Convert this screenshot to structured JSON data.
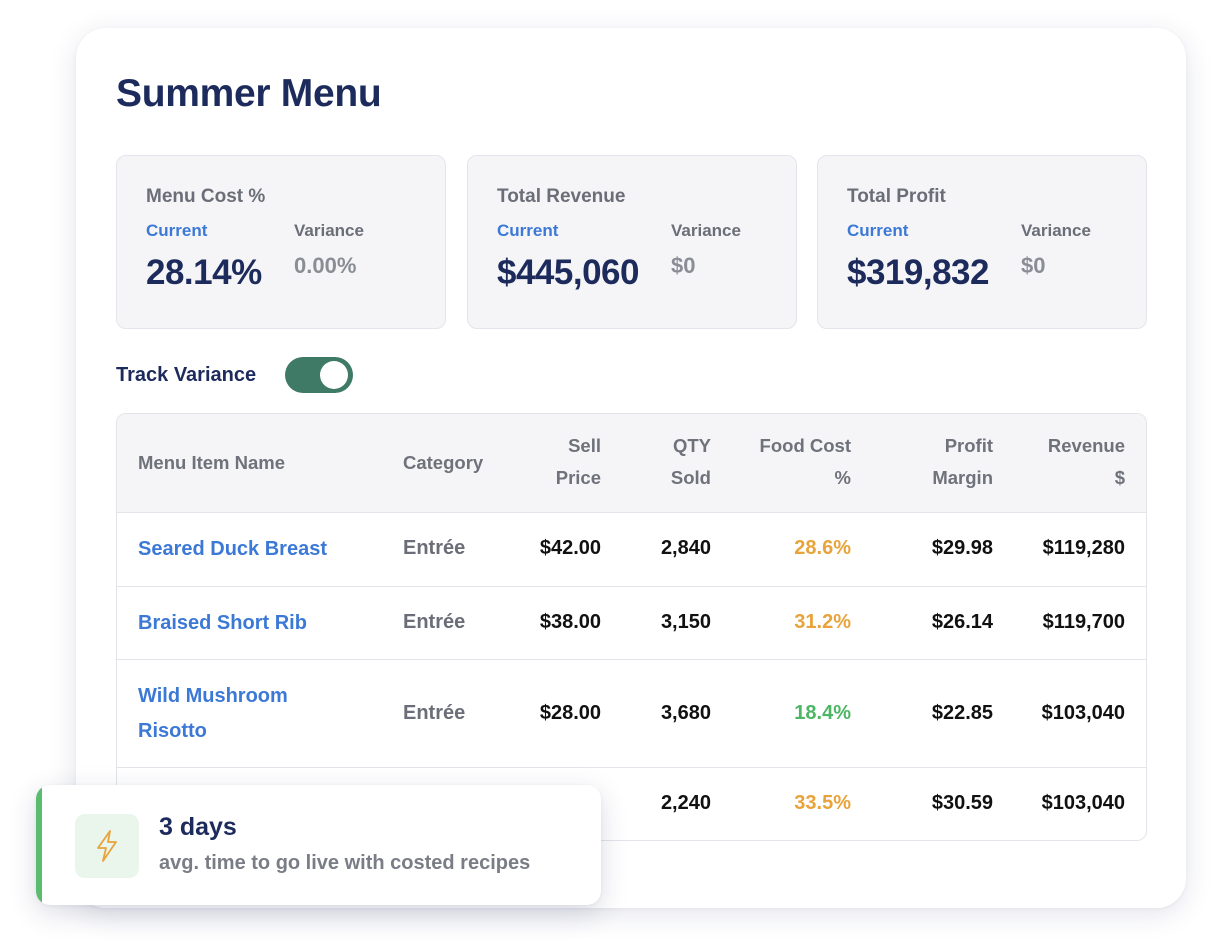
{
  "title": "Summer Menu",
  "metrics": [
    {
      "label": "Menu Cost %",
      "current_label": "Current",
      "current_value": "28.14%",
      "variance_label": "Variance",
      "variance_value": "0.00%"
    },
    {
      "label": "Total Revenue",
      "current_label": "Current",
      "current_value": "$445,060",
      "variance_label": "Variance",
      "variance_value": "$0"
    },
    {
      "label": "Total Profit",
      "current_label": "Current",
      "current_value": "$319,832",
      "variance_label": "Variance",
      "variance_value": "$0"
    }
  ],
  "track_variance": {
    "label": "Track Variance",
    "enabled": true
  },
  "table": {
    "headers": {
      "name": "Menu Item Name",
      "category": "Category",
      "sell_price": [
        "Sell",
        "Price"
      ],
      "qty_sold": [
        "QTY",
        "Sold"
      ],
      "food_cost": [
        "Food Cost",
        "%"
      ],
      "profit_margin": [
        "Profit",
        "Margin"
      ],
      "revenue": [
        "Revenue",
        "$"
      ]
    },
    "rows": [
      {
        "name": [
          "Seared Duck Breast"
        ],
        "category": "Entrée",
        "sell_price": "$42.00",
        "qty_sold": "2,840",
        "food_cost": "28.6%",
        "food_cost_status": "orange",
        "profit_margin": "$29.98",
        "revenue": "$119,280"
      },
      {
        "name": [
          "Braised Short Rib"
        ],
        "category": "Entrée",
        "sell_price": "$38.00",
        "qty_sold": "3,150",
        "food_cost": "31.2%",
        "food_cost_status": "orange",
        "profit_margin": "$26.14",
        "revenue": "$119,700"
      },
      {
        "name": [
          "Wild Mushroom",
          "Risotto"
        ],
        "category": "Entrée",
        "sell_price": "$28.00",
        "qty_sold": "3,680",
        "food_cost": "18.4%",
        "food_cost_status": "green",
        "profit_margin": "$22.85",
        "revenue": "$103,040"
      },
      {
        "qty_sold": "2,240",
        "food_cost": "33.5%",
        "food_cost_status": "orange",
        "profit_margin": "$30.59",
        "revenue": "$103,040"
      }
    ]
  },
  "toast": {
    "icon": "lightning-icon",
    "headline": "3 days",
    "subtext": "avg. time to go live with costed recipes"
  },
  "colors": {
    "accent_blue": "#3c79d6",
    "navy": "#1d2b5c",
    "toggle_green": "#3f7a66",
    "warn_orange": "#e8a33a",
    "good_green": "#4cb665",
    "toast_accent": "#5bbb6e"
  }
}
